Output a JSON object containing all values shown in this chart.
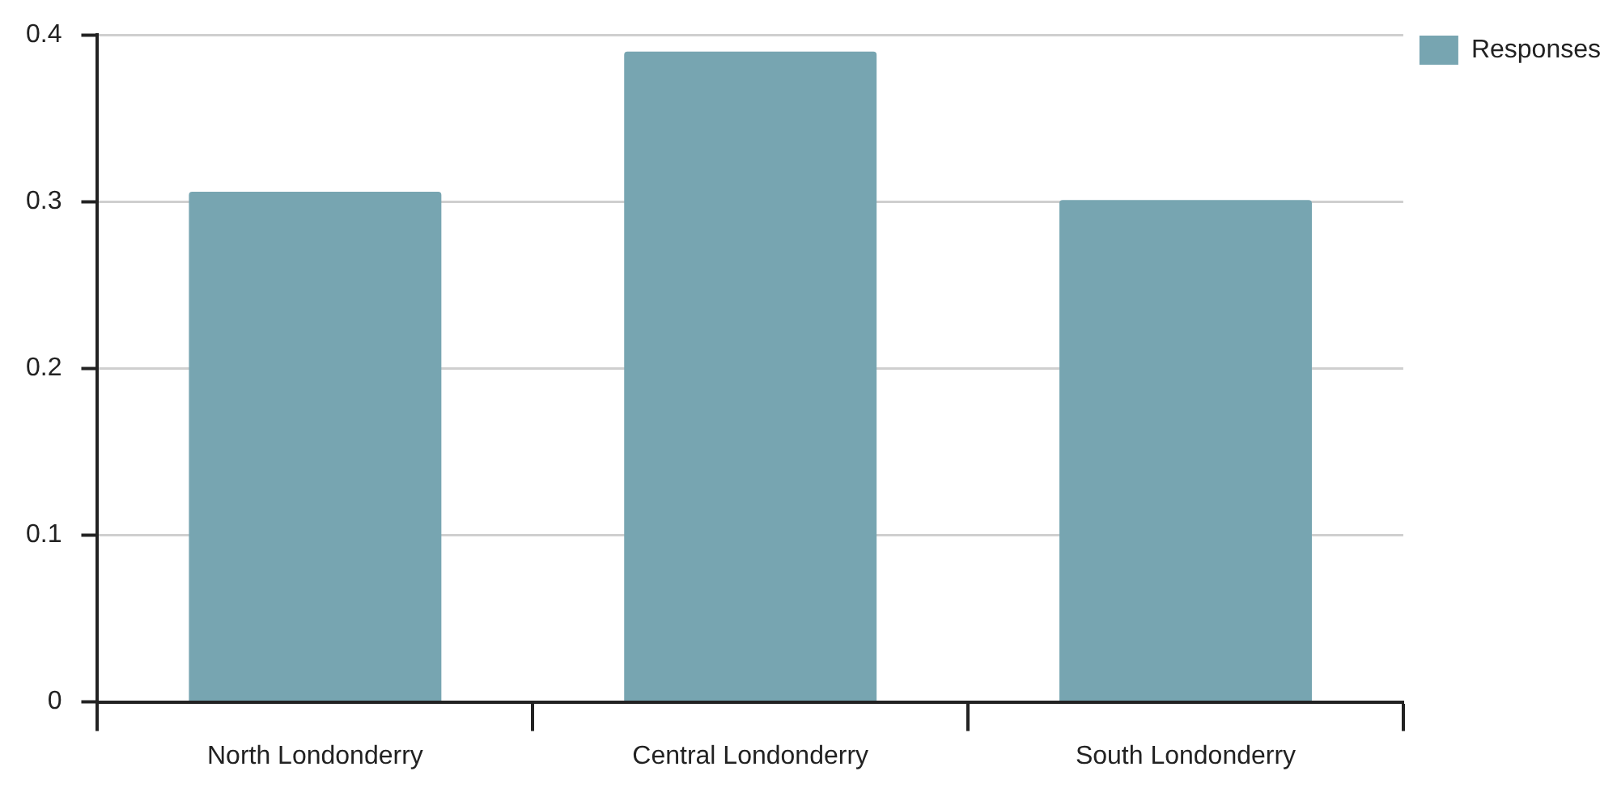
{
  "chart_data": {
    "type": "bar",
    "categories": [
      "North Londonderry",
      "Central Londonderry",
      "South Londonderry"
    ],
    "series": [
      {
        "name": "Responses",
        "color": "#77a5b1",
        "values": [
          0.306,
          0.39,
          0.301
        ]
      }
    ],
    "ylim": [
      0,
      0.4
    ],
    "yticks": [
      0,
      0.1,
      0.2,
      0.3,
      0.4
    ],
    "grid": "y",
    "legend": "top right"
  }
}
